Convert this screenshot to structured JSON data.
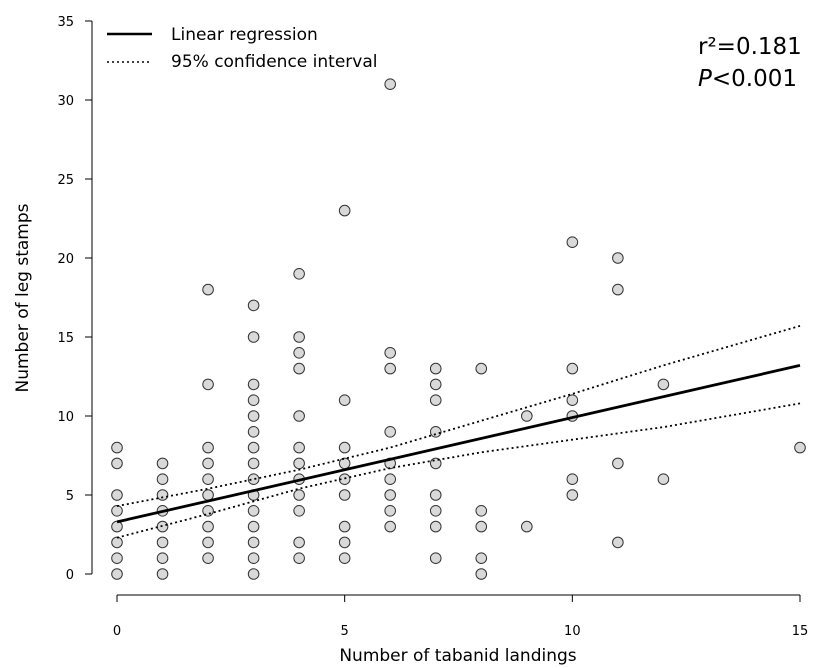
{
  "chart_data": {
    "type": "scatter",
    "xlabel": "Number of tabanid landings",
    "ylabel": "Number of leg stamps",
    "xlim": [
      0,
      15
    ],
    "ylim": [
      0,
      35
    ],
    "xticks": [
      "0",
      "5",
      "10",
      "15"
    ],
    "yticks": [
      "0",
      "5",
      "10",
      "15",
      "20",
      "25",
      "30",
      "35"
    ],
    "grid": false,
    "legend_position": "top-left",
    "legend": [
      {
        "label": "Linear regression",
        "style": "solid"
      },
      {
        "label": "95% confidence interval",
        "style": "dotted"
      }
    ],
    "annotations": {
      "r2": "r²=0.181",
      "p_italic": "P",
      "p_rest": "<0.001"
    },
    "regression": {
      "x": [
        0,
        15
      ],
      "y": [
        3.3,
        13.2
      ]
    },
    "ci_upper": {
      "x": [
        0,
        2,
        4,
        6,
        8,
        10,
        12,
        15
      ],
      "y": [
        4.3,
        5.4,
        6.6,
        8.0,
        9.7,
        11.4,
        13.2,
        15.7
      ]
    },
    "ci_lower": {
      "x": [
        0,
        2,
        4,
        6,
        8,
        10,
        12,
        15
      ],
      "y": [
        2.3,
        3.8,
        5.4,
        6.7,
        7.7,
        8.5,
        9.3,
        10.8
      ]
    },
    "points": [
      [
        0,
        0
      ],
      [
        0,
        1
      ],
      [
        0,
        2
      ],
      [
        0,
        3
      ],
      [
        0,
        4
      ],
      [
        0,
        5
      ],
      [
        0,
        7
      ],
      [
        0,
        8
      ],
      [
        1,
        0
      ],
      [
        1,
        1
      ],
      [
        1,
        2
      ],
      [
        1,
        3
      ],
      [
        1,
        4
      ],
      [
        1,
        5
      ],
      [
        1,
        6
      ],
      [
        1,
        7
      ],
      [
        2,
        1
      ],
      [
        2,
        2
      ],
      [
        2,
        3
      ],
      [
        2,
        4
      ],
      [
        2,
        5
      ],
      [
        2,
        6
      ],
      [
        2,
        7
      ],
      [
        2,
        8
      ],
      [
        2,
        12
      ],
      [
        2,
        18
      ],
      [
        3,
        0
      ],
      [
        3,
        1
      ],
      [
        3,
        2
      ],
      [
        3,
        3
      ],
      [
        3,
        4
      ],
      [
        3,
        5
      ],
      [
        3,
        6
      ],
      [
        3,
        7
      ],
      [
        3,
        8
      ],
      [
        3,
        9
      ],
      [
        3,
        10
      ],
      [
        3,
        11
      ],
      [
        3,
        12
      ],
      [
        3,
        15
      ],
      [
        3,
        17
      ],
      [
        4,
        1
      ],
      [
        4,
        2
      ],
      [
        4,
        4
      ],
      [
        4,
        5
      ],
      [
        4,
        6
      ],
      [
        4,
        7
      ],
      [
        4,
        8
      ],
      [
        4,
        10
      ],
      [
        4,
        13
      ],
      [
        4,
        14
      ],
      [
        4,
        15
      ],
      [
        4,
        19
      ],
      [
        5,
        1
      ],
      [
        5,
        2
      ],
      [
        5,
        3
      ],
      [
        5,
        5
      ],
      [
        5,
        6
      ],
      [
        5,
        7
      ],
      [
        5,
        8
      ],
      [
        5,
        11
      ],
      [
        5,
        23
      ],
      [
        6,
        3
      ],
      [
        6,
        4
      ],
      [
        6,
        5
      ],
      [
        6,
        6
      ],
      [
        6,
        7
      ],
      [
        6,
        9
      ],
      [
        6,
        13
      ],
      [
        6,
        14
      ],
      [
        6,
        31
      ],
      [
        7,
        1
      ],
      [
        7,
        3
      ],
      [
        7,
        4
      ],
      [
        7,
        5
      ],
      [
        7,
        7
      ],
      [
        7,
        9
      ],
      [
        7,
        11
      ],
      [
        7,
        12
      ],
      [
        7,
        13
      ],
      [
        8,
        0
      ],
      [
        8,
        1
      ],
      [
        8,
        3
      ],
      [
        8,
        4
      ],
      [
        8,
        13
      ],
      [
        9,
        3
      ],
      [
        9,
        10
      ],
      [
        10,
        5
      ],
      [
        10,
        6
      ],
      [
        10,
        10
      ],
      [
        10,
        11
      ],
      [
        10,
        13
      ],
      [
        10,
        21
      ],
      [
        11,
        2
      ],
      [
        11,
        7
      ],
      [
        11,
        18
      ],
      [
        11,
        20
      ],
      [
        12,
        6
      ],
      [
        12,
        12
      ],
      [
        15,
        8
      ]
    ]
  }
}
